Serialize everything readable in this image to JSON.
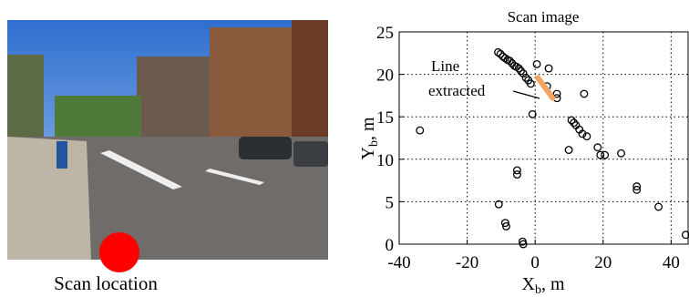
{
  "photo": {
    "caption": "Scan location"
  },
  "chart_data": {
    "type": "scatter",
    "title": "Scan image",
    "xlabel": {
      "main": "X",
      "sub": "b",
      "unit": ", m"
    },
    "ylabel": {
      "main": "Y",
      "sub": "b",
      "unit": ", m"
    },
    "annotation": [
      "Line",
      "extracted"
    ],
    "x": [
      -33.9,
      -10.9,
      -10.2,
      -9.5,
      -8.8,
      -8.1,
      -7.5,
      -6.8,
      -6.1,
      -5.5,
      -4.8,
      -4.2,
      -3.5,
      -2.7,
      -2.0,
      -1.3,
      0.5,
      4.0,
      3.5,
      6.4,
      6.4,
      -0.8,
      14.4,
      10.7,
      11.4,
      12.0,
      13.0,
      13.9,
      15.2,
      9.9,
      18.4,
      19.2,
      20.5,
      25.3,
      29.9,
      29.9,
      36.3,
      44.3,
      -5.3,
      -5.3,
      -10.7,
      -8.8,
      -8.5,
      -3.7,
      -3.5
    ],
    "values": [
      13.4,
      22.6,
      22.4,
      22.1,
      21.9,
      21.7,
      21.6,
      21.3,
      21.0,
      20.9,
      20.7,
      20.4,
      20.1,
      19.6,
      19.3,
      18.9,
      21.2,
      20.7,
      18.6,
      17.7,
      17.2,
      15.3,
      17.7,
      14.6,
      14.3,
      14.0,
      13.5,
      13.0,
      12.7,
      11.1,
      11.4,
      10.5,
      10.5,
      10.7,
      6.8,
      6.4,
      4.4,
      1.1,
      8.7,
      8.2,
      4.7,
      2.5,
      2.1,
      0.3,
      0.0
    ],
    "color": "#000000",
    "highlight": {
      "x": [
        0.8,
        5.2
      ],
      "y": [
        19.6,
        17.2
      ],
      "color": "#f4a460"
    },
    "xlim": [
      -40,
      45
    ],
    "xticks": [
      -40,
      -20,
      0,
      20,
      40
    ],
    "ylim": [
      0,
      25
    ],
    "yticks": [
      0,
      5,
      10,
      15,
      20,
      25
    ],
    "grid": true
  }
}
